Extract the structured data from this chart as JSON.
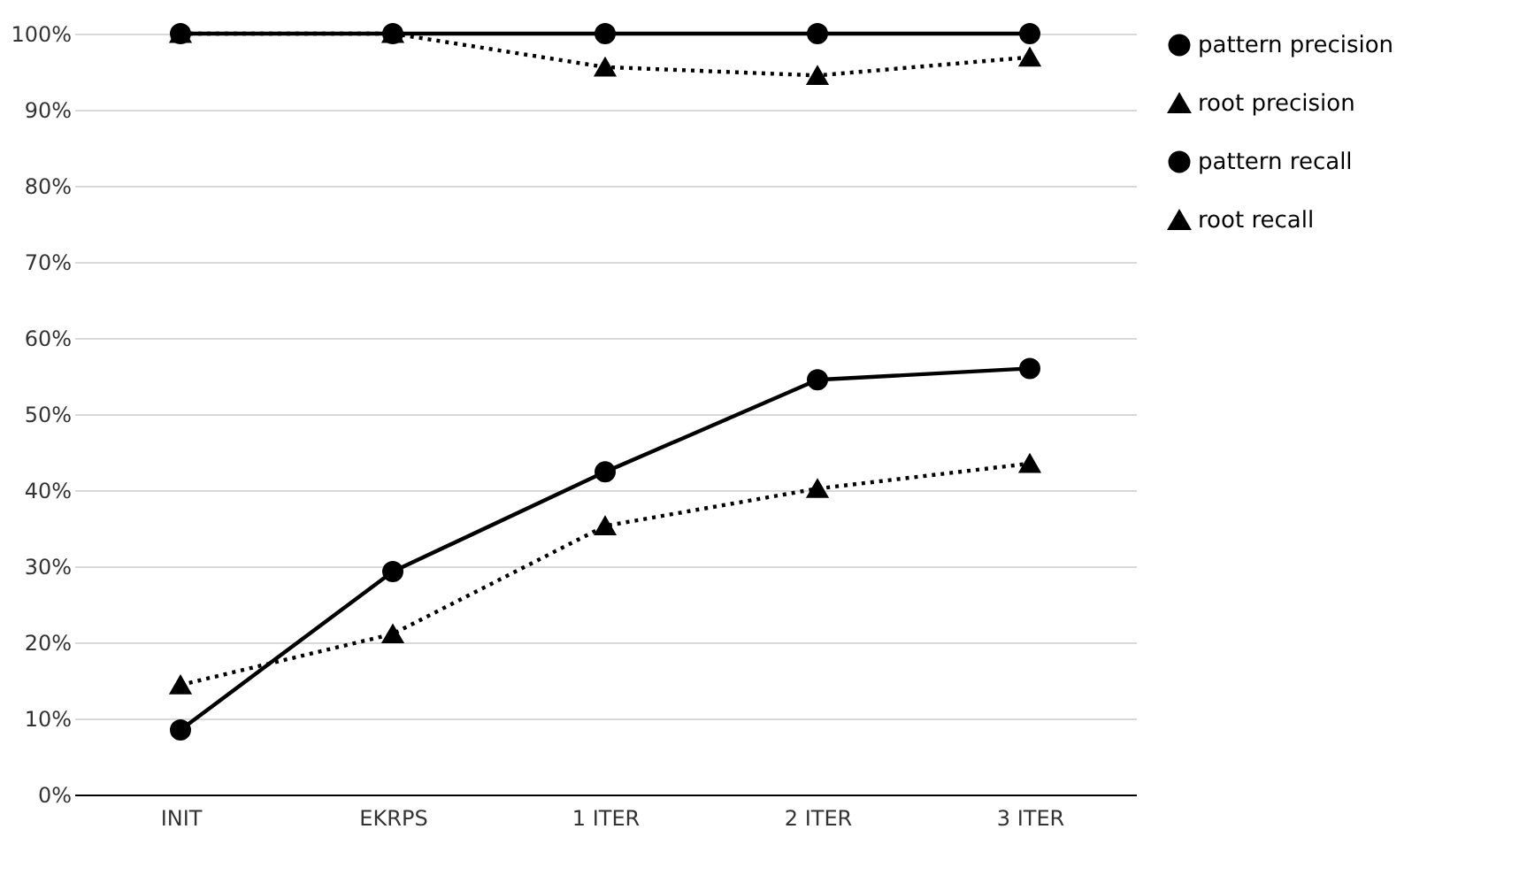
{
  "chart_data": {
    "type": "line",
    "categories": [
      "INIT",
      "EKRPS",
      "1 ITER",
      "2 ITER",
      "3 ITER"
    ],
    "series": [
      {
        "name": "pattern precision",
        "color": "#000000",
        "marker": "circle",
        "line_style": "solid",
        "values": [
          100,
          100,
          100,
          100,
          100
        ]
      },
      {
        "name": "root precision",
        "color": "#000000",
        "marker": "triangle",
        "line_style": "dotted",
        "values": [
          100,
          100,
          95.6,
          94.5,
          96.9
        ]
      },
      {
        "name": "pattern recall",
        "color": "#000000",
        "marker": "circle",
        "line_style": "solid",
        "values": [
          8.5,
          29.3,
          42.4,
          54.5,
          56.0
        ]
      },
      {
        "name": "root recall",
        "color": "#000000",
        "marker": "triangle",
        "line_style": "dotted",
        "values": [
          14.4,
          21.1,
          35.3,
          40.2,
          43.5
        ]
      }
    ],
    "ylim": [
      0,
      100
    ],
    "yticks": [
      {
        "value": 0,
        "label": "0%"
      },
      {
        "value": 10,
        "label": "10%"
      },
      {
        "value": 20,
        "label": "20%"
      },
      {
        "value": 30,
        "label": "30%"
      },
      {
        "value": 40,
        "label": "40%"
      },
      {
        "value": 50,
        "label": "50%"
      },
      {
        "value": 60,
        "label": "60%"
      },
      {
        "value": 70,
        "label": "70%"
      },
      {
        "value": 80,
        "label": "80%"
      },
      {
        "value": 90,
        "label": "90%"
      },
      {
        "value": 100,
        "label": "100%"
      }
    ],
    "grid": "y",
    "legend": "right"
  }
}
